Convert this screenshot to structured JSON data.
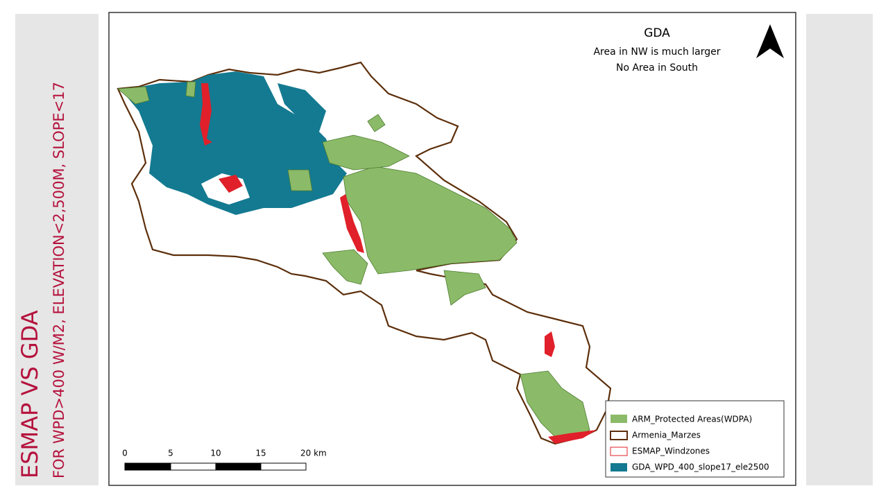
{
  "slide": {
    "title": "ESMAP VS GDA",
    "subtitle": "FOR WPD>400 W/M2, ELEVATION<2,500M, SLOPE<17"
  },
  "map": {
    "title": "GDA",
    "notes": [
      "Area in NW is much larger",
      "No Area in South"
    ],
    "legend": [
      "ARM_Protected Areas(WDPA)",
      "Armenia_Marzes",
      "ESMAP_Windzones",
      "GDA_WPD_400_slope17_ele2500"
    ],
    "scale_bar": [
      "0",
      "5",
      "10",
      "15",
      "20 km"
    ]
  }
}
